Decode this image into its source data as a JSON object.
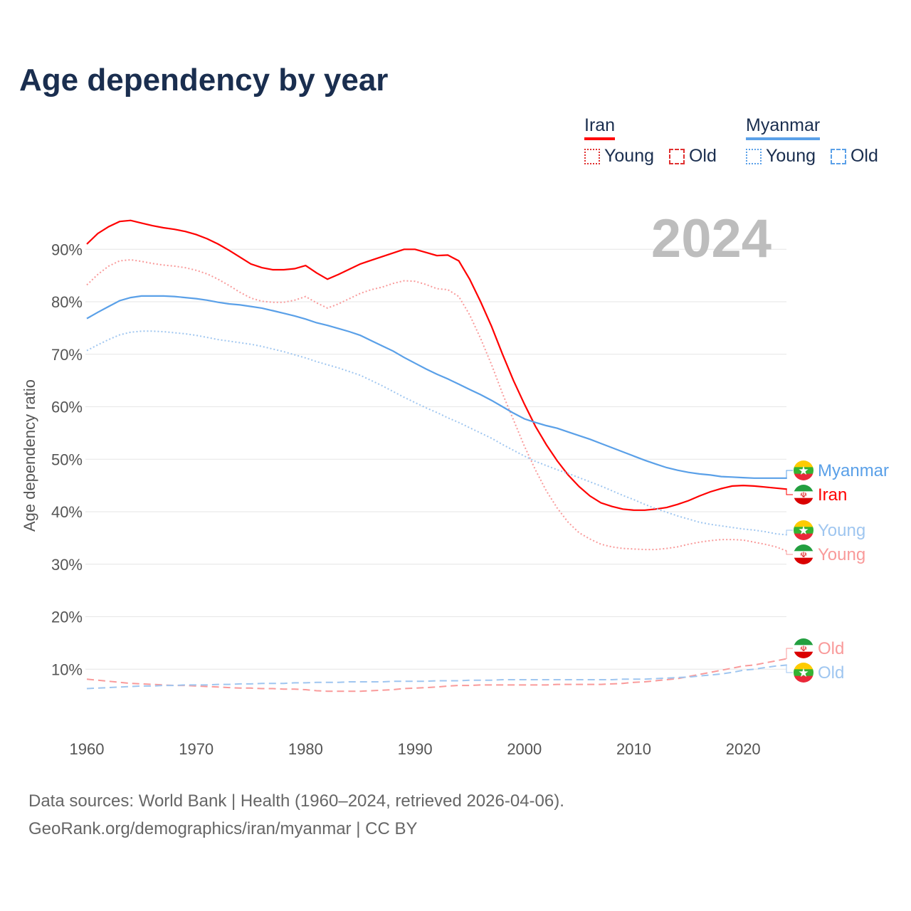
{
  "title": "Age dependency by year",
  "year_badge": "2024",
  "legend": {
    "groups": [
      {
        "name": "Iran",
        "color": "#ff0000",
        "young": "Young",
        "old": "Old"
      },
      {
        "name": "Myanmar",
        "color": "#5aa0e8",
        "young": "Young",
        "old": "Old"
      }
    ]
  },
  "source": {
    "line1": "Data sources: World Bank | Health (1960–2024, retrieved 2026-04-06).",
    "line2": "GeoRank.org/demographics/iran/myanmar | CC BY"
  },
  "chart_data": {
    "type": "line",
    "title": "Age dependency by year",
    "xlabel": "",
    "ylabel": "Age dependency ratio",
    "xlim": [
      1960,
      2024
    ],
    "ylim": [
      0,
      95
    ],
    "grid": true,
    "x_ticks": [
      "1960",
      "1970",
      "1980",
      "1990",
      "2000",
      "2010",
      "2020"
    ],
    "y_ticks": [
      "10%",
      "20%",
      "30%",
      "40%",
      "50%",
      "60%",
      "70%",
      "80%",
      "90%"
    ],
    "start_year": 1960,
    "series": [
      {
        "name": "Iran",
        "label": "Iran",
        "style": "solid",
        "color": "#ff0000",
        "values": [
          91,
          93,
          94.3,
          95.3,
          95.5,
          95,
          94.5,
          94.1,
          93.8,
          93.4,
          92.8,
          92,
          91,
          89.8,
          88.5,
          87.2,
          86.5,
          86.1,
          86.1,
          86.3,
          86.9,
          85.5,
          84.3,
          85.2,
          86.2,
          87.2,
          87.9,
          88.6,
          89.3,
          90,
          90,
          89.4,
          88.8,
          88.9,
          87.8,
          84.3,
          80,
          75.3,
          70,
          65,
          60.5,
          56.3,
          52.8,
          49.7,
          47,
          44.8,
          43,
          41.7,
          41,
          40.5,
          40.3,
          40.3,
          40.5,
          40.8,
          41.4,
          42.1,
          43,
          43.8,
          44.4,
          44.9,
          45,
          44.9,
          44.7,
          44.5,
          44.3
        ]
      },
      {
        "name": "Iran Young",
        "label": "Young",
        "style": "dotted",
        "color": "#f99a9a",
        "values": [
          83.2,
          85.2,
          86.8,
          87.8,
          88,
          87.7,
          87.3,
          87,
          86.8,
          86.5,
          86,
          85.3,
          84.3,
          83.1,
          81.8,
          80.7,
          80.1,
          79.9,
          79.9,
          80.3,
          81,
          79.8,
          78.8,
          79.6,
          80.6,
          81.6,
          82.3,
          82.8,
          83.5,
          84,
          83.9,
          83.3,
          82.5,
          82.3,
          81,
          77.5,
          73,
          68,
          62.5,
          57.5,
          52.5,
          48,
          44,
          40.7,
          38,
          36,
          34.8,
          33.8,
          33.3,
          33,
          32.9,
          32.8,
          32.8,
          33,
          33.3,
          33.8,
          34.2,
          34.5,
          34.7,
          34.7,
          34.6,
          34.2,
          33.8,
          33.3,
          32.5
        ]
      },
      {
        "name": "Iran Old",
        "label": "Old",
        "style": "dashed",
        "color": "#f99a9a",
        "values": [
          8.1,
          7.9,
          7.7,
          7.5,
          7.3,
          7.2,
          7.1,
          7,
          6.9,
          6.9,
          6.8,
          6.7,
          6.6,
          6.5,
          6.4,
          6.4,
          6.3,
          6.3,
          6.2,
          6.2,
          6.1,
          5.9,
          5.8,
          5.8,
          5.8,
          5.8,
          5.9,
          6,
          6.1,
          6.3,
          6.4,
          6.5,
          6.6,
          6.8,
          6.9,
          6.9,
          7,
          7,
          7,
          7,
          7,
          7,
          7,
          7.1,
          7.1,
          7.1,
          7.1,
          7.1,
          7.2,
          7.3,
          7.5,
          7.6,
          7.8,
          8,
          8.2,
          8.6,
          9,
          9.4,
          9.8,
          10.2,
          10.6,
          10.8,
          11.2,
          11.6,
          12
        ]
      },
      {
        "name": "Myanmar",
        "label": "Myanmar",
        "style": "solid",
        "color": "#5aa0e8",
        "values": [
          76.8,
          78,
          79.1,
          80.2,
          80.8,
          81.1,
          81.1,
          81.1,
          81,
          80.8,
          80.6,
          80.3,
          79.9,
          79.6,
          79.4,
          79.1,
          78.8,
          78.3,
          77.8,
          77.3,
          76.7,
          76,
          75.5,
          74.9,
          74.3,
          73.6,
          72.6,
          71.6,
          70.6,
          69.4,
          68.3,
          67.2,
          66.2,
          65.3,
          64.3,
          63.3,
          62.3,
          61.2,
          60,
          58.8,
          57.7,
          57,
          56.4,
          55.9,
          55.2,
          54.5,
          53.8,
          53,
          52.2,
          51.4,
          50.6,
          49.8,
          49.1,
          48.4,
          47.9,
          47.5,
          47.2,
          47,
          46.7,
          46.6,
          46.5,
          46.4,
          46.4,
          46.4,
          46.4
        ]
      },
      {
        "name": "Myanmar Young",
        "label": "Young",
        "style": "dotted",
        "color": "#9fc6f0",
        "values": [
          70.7,
          71.8,
          72.8,
          73.7,
          74.2,
          74.4,
          74.4,
          74.3,
          74.1,
          73.9,
          73.6,
          73.2,
          72.8,
          72.5,
          72.2,
          71.9,
          71.5,
          71,
          70.5,
          69.9,
          69.3,
          68.6,
          68,
          67.4,
          66.7,
          66,
          65,
          64,
          62.9,
          61.8,
          60.8,
          59.8,
          58.9,
          57.9,
          57,
          56,
          55,
          54,
          52.8,
          51.7,
          50.6,
          49.6,
          48.8,
          48,
          47.3,
          46.5,
          45.7,
          44.9,
          44,
          43.1,
          42.3,
          41.4,
          40.6,
          39.9,
          39.2,
          38.6,
          38,
          37.6,
          37.3,
          37,
          36.7,
          36.5,
          36.2,
          35.8,
          35.6
        ]
      },
      {
        "name": "Myanmar Old",
        "label": "Old",
        "style": "dashed",
        "color": "#9fc6f0",
        "values": [
          6.3,
          6.4,
          6.5,
          6.6,
          6.7,
          6.8,
          6.8,
          6.9,
          6.9,
          7,
          7,
          7,
          7.1,
          7.1,
          7.2,
          7.2,
          7.3,
          7.3,
          7.3,
          7.4,
          7.4,
          7.5,
          7.5,
          7.5,
          7.6,
          7.6,
          7.6,
          7.6,
          7.7,
          7.7,
          7.7,
          7.7,
          7.8,
          7.8,
          7.8,
          7.9,
          7.9,
          7.9,
          8,
          8,
          8,
          8,
          8,
          8,
          8,
          8,
          8,
          8,
          8,
          8.1,
          8.1,
          8.1,
          8.2,
          8.3,
          8.4,
          8.5,
          8.7,
          8.9,
          9.1,
          9.4,
          9.8,
          10,
          10.3,
          10.6,
          10.8
        ]
      }
    ]
  }
}
